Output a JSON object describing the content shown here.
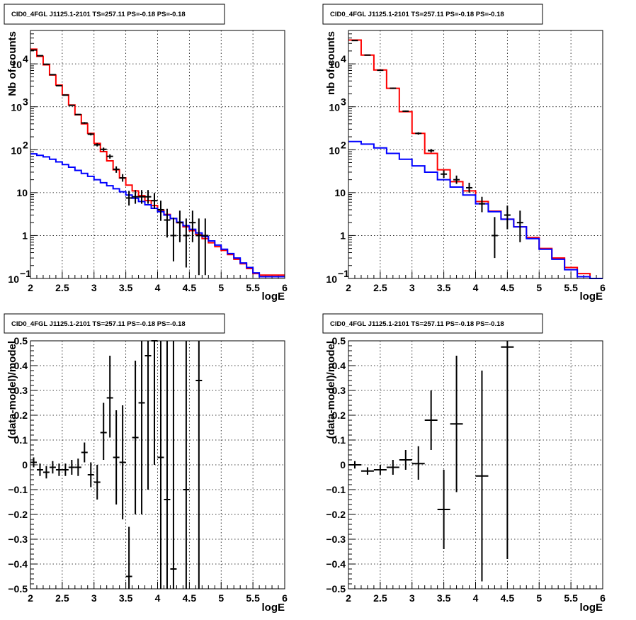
{
  "panels": [
    {
      "id": "top-left",
      "title": "CID0_4FGL J1125.1-2101 TS=257.11 PS=-0.18 PS=-0.18",
      "xlabel": "logE",
      "ylabel": "Nb of counts"
    },
    {
      "id": "top-right",
      "title": "CID0_4FGL J1125.1-2101 TS=257.11 PS=-0.18 PS=-0.18",
      "xlabel": "logE",
      "ylabel": "nb of counts"
    },
    {
      "id": "bottom-left",
      "title": "CID0_4FGL J1125.1-2101 TS=257.11 PS=-0.18 PS=-0.18",
      "xlabel": "logE",
      "ylabel": "(data-model)/model"
    },
    {
      "id": "bottom-right",
      "title": "CID0_4FGL J1125.1-2101 TS=257.11 PS=-0.18 PS=-0.18",
      "xlabel": "logE",
      "ylabel": "(data-model)/model"
    }
  ],
  "chart_data": [
    {
      "type": "line",
      "title": "CID0_4FGL J1125.1-2101 TS=257.11 PS=-0.18 PS=-0.18",
      "xlabel": "logE",
      "ylabel": "Nb of counts",
      "xlim": [
        2,
        6
      ],
      "ylim": [
        0.1,
        60000
      ],
      "yscale": "log",
      "grid": true,
      "xticks": [
        "2",
        "2.5",
        "3",
        "3.5",
        "4",
        "4.5",
        "5",
        "5.5",
        "6"
      ],
      "yticks": [
        {
          "v": 0.1,
          "t": "10"
        },
        {
          "v": 1,
          "t": "1"
        },
        {
          "v": 10,
          "t": "10"
        },
        {
          "v": 100,
          "t": "10"
        },
        {
          "v": 1000,
          "t": "10"
        },
        {
          "v": 10000,
          "t": "10"
        }
      ],
      "bin_edges": [
        2,
        2.1,
        2.2,
        2.3,
        2.4,
        2.5,
        2.6,
        2.7,
        2.8,
        2.9,
        3,
        3.1,
        3.2,
        3.3,
        3.4,
        3.5,
        3.6,
        3.7,
        3.8,
        3.9,
        4,
        4.1,
        4.2,
        4.3,
        4.4,
        4.5,
        4.6,
        4.7,
        4.8,
        4.9,
        5,
        5.1,
        5.2,
        5.3,
        5.4,
        5.5,
        5.6,
        5.7,
        5.8,
        5.9,
        6
      ],
      "series": [
        {
          "color": "#ff0000",
          "values": [
            22000,
            15000,
            9500,
            5500,
            3200,
            1900,
            1100,
            650,
            400,
            240,
            140,
            90,
            55,
            34,
            22,
            15,
            11,
            8.5,
            6.5,
            5,
            3.9,
            3.1,
            2.5,
            2.0,
            1.6,
            1.3,
            1.05,
            0.85,
            0.68,
            0.55,
            0.45,
            0.36,
            0.28,
            0.22,
            0.17,
            0.13,
            0.12,
            0.12,
            0.12,
            0.12
          ]
        },
        {
          "color": "#0000ff",
          "values": [
            80,
            74,
            68,
            60,
            52,
            45,
            39,
            33,
            28,
            24,
            20,
            17,
            14.5,
            12.3,
            10.5,
            8.8,
            7.4,
            6.2,
            5.2,
            4.3,
            3.6,
            3.0,
            2.5,
            2.05,
            1.7,
            1.4,
            1.15,
            0.95,
            0.75,
            0.6,
            0.48,
            0.38,
            0.3,
            0.23,
            0.18,
            0.135,
            0.11,
            0.11,
            0.11,
            0.11
          ]
        }
      ],
      "points": [
        {
          "x": 2.05,
          "y": 21000,
          "lo": 20500,
          "hi": 21500
        },
        {
          "x": 2.15,
          "y": 15500,
          "lo": 15200,
          "hi": 15800
        },
        {
          "x": 2.25,
          "y": 9800,
          "lo": 9600,
          "hi": 10000
        },
        {
          "x": 2.35,
          "y": 5600,
          "lo": 5450,
          "hi": 5750
        },
        {
          "x": 2.45,
          "y": 3100,
          "lo": 3000,
          "hi": 3200
        },
        {
          "x": 2.55,
          "y": 1870,
          "lo": 1830,
          "hi": 1910
        },
        {
          "x": 2.65,
          "y": 1080,
          "lo": 1050,
          "hi": 1110
        },
        {
          "x": 2.75,
          "y": 660,
          "lo": 640,
          "hi": 680
        },
        {
          "x": 2.85,
          "y": 420,
          "lo": 400,
          "hi": 440
        },
        {
          "x": 2.95,
          "y": 230,
          "lo": 215,
          "hi": 245
        },
        {
          "x": 3.05,
          "y": 130,
          "lo": 119,
          "hi": 141
        },
        {
          "x": 3.15,
          "y": 102,
          "lo": 92,
          "hi": 112
        },
        {
          "x": 3.25,
          "y": 70,
          "lo": 62,
          "hi": 78
        },
        {
          "x": 3.35,
          "y": 35,
          "lo": 29,
          "hi": 41
        },
        {
          "x": 3.45,
          "y": 22,
          "lo": 18,
          "hi": 27
        },
        {
          "x": 3.55,
          "y": 7.5,
          "lo": 5,
          "hi": 11
        },
        {
          "x": 3.65,
          "y": 8,
          "lo": 5.5,
          "hi": 11.5
        },
        {
          "x": 3.75,
          "y": 8,
          "lo": 5.5,
          "hi": 11.5
        },
        {
          "x": 3.85,
          "y": 8,
          "lo": 5.5,
          "hi": 11.5
        },
        {
          "x": 3.95,
          "y": 6.5,
          "lo": 4.2,
          "hi": 9.8
        },
        {
          "x": 4.05,
          "y": 4,
          "lo": 2.2,
          "hi": 6.5
        },
        {
          "x": 4.15,
          "y": 2.3,
          "lo": 0.9,
          "hi": 4.2
        },
        {
          "x": 4.25,
          "y": 1,
          "lo": 0.25,
          "hi": 2.6
        },
        {
          "x": 4.35,
          "y": 2,
          "lo": 0.7,
          "hi": 3.8
        },
        {
          "x": 4.45,
          "y": 1,
          "lo": 0.18,
          "hi": 2.5
        },
        {
          "x": 4.55,
          "y": 2,
          "lo": 0.7,
          "hi": 3.8
        },
        {
          "x": 4.65,
          "y": 1,
          "lo": 0.12,
          "hi": 2.5
        },
        {
          "x": 4.75,
          "y": 1,
          "lo": 0.12,
          "hi": 2.5
        }
      ]
    },
    {
      "type": "line",
      "title": "CID0_4FGL J1125.1-2101 TS=257.11 PS=-0.18 PS=-0.18",
      "xlabel": "logE",
      "ylabel": "nb of counts",
      "xlim": [
        2,
        6
      ],
      "ylim": [
        0.1,
        60000
      ],
      "yscale": "log",
      "grid": true,
      "xticks": [
        "2",
        "2.5",
        "3",
        "3.5",
        "4",
        "4.5",
        "5",
        "5.5",
        "6"
      ],
      "yticks": [
        {
          "v": 0.1,
          "t": "10"
        },
        {
          "v": 1,
          "t": "1"
        },
        {
          "v": 10,
          "t": "10"
        },
        {
          "v": 100,
          "t": "10"
        },
        {
          "v": 1000,
          "t": "10"
        },
        {
          "v": 10000,
          "t": "10"
        }
      ],
      "bin_edges": [
        2,
        2.2,
        2.4,
        2.6,
        2.8,
        3,
        3.2,
        3.4,
        3.6,
        3.8,
        4,
        4.2,
        4.4,
        4.6,
        4.8,
        5,
        5.2,
        5.4,
        5.6,
        5.8,
        6
      ],
      "series": [
        {
          "color": "#ff0000",
          "values": [
            36000,
            16000,
            7200,
            2700,
            770,
            240,
            82,
            34,
            18,
            11,
            6.2,
            3.7,
            2.4,
            1.6,
            0.9,
            0.5,
            0.3,
            0.18,
            0.13,
            0.1
          ]
        },
        {
          "color": "#0000ff",
          "values": [
            155,
            135,
            110,
            82,
            60,
            42,
            30,
            20,
            13.5,
            8.8,
            5.5,
            3.6,
            2.4,
            1.6,
            0.85,
            0.48,
            0.28,
            0.16,
            0.11,
            0.1
          ]
        }
      ],
      "points": [
        {
          "x": 2.1,
          "y": 35000,
          "lo": 34500,
          "hi": 35500
        },
        {
          "x": 2.3,
          "y": 16000,
          "lo": 15700,
          "hi": 16300
        },
        {
          "x": 2.5,
          "y": 7100,
          "lo": 6950,
          "hi": 7250
        },
        {
          "x": 2.7,
          "y": 2700,
          "lo": 2600,
          "hi": 2800
        },
        {
          "x": 2.9,
          "y": 790,
          "lo": 760,
          "hi": 820
        },
        {
          "x": 3.1,
          "y": 240,
          "lo": 225,
          "hi": 255
        },
        {
          "x": 3.3,
          "y": 95,
          "lo": 86,
          "hi": 104
        },
        {
          "x": 3.5,
          "y": 27,
          "lo": 22,
          "hi": 33
        },
        {
          "x": 3.7,
          "y": 20,
          "lo": 16,
          "hi": 25
        },
        {
          "x": 3.9,
          "y": 13,
          "lo": 10,
          "hi": 17
        },
        {
          "x": 4.1,
          "y": 5.5,
          "lo": 3.5,
          "hi": 8
        },
        {
          "x": 4.3,
          "y": 1,
          "lo": 0.3,
          "hi": 2.7
        },
        {
          "x": 4.5,
          "y": 3,
          "lo": 1.4,
          "hi": 5
        },
        {
          "x": 4.7,
          "y": 2,
          "lo": 0.7,
          "hi": 3.8
        }
      ]
    },
    {
      "type": "scatter",
      "title": "CID0_4FGL J1125.1-2101 TS=257.11 PS=-0.18 PS=-0.18",
      "xlabel": "logE",
      "ylabel": "(data-model)/model",
      "xlim": [
        2,
        6
      ],
      "ylim": [
        -0.5,
        0.5
      ],
      "grid": true,
      "xticks": [
        "2",
        "2.5",
        "3",
        "3.5",
        "4",
        "4.5",
        "5",
        "5.5",
        "6"
      ],
      "yticks": [
        {
          "v": -0.5,
          "t": "−0.5"
        },
        {
          "v": -0.4,
          "t": "−0.4"
        },
        {
          "v": -0.3,
          "t": "−0.3"
        },
        {
          "v": -0.2,
          "t": "−0.2"
        },
        {
          "v": -0.1,
          "t": "−0.1"
        },
        {
          "v": 0,
          "t": "0"
        },
        {
          "v": 0.1,
          "t": "0.1"
        },
        {
          "v": 0.2,
          "t": "0.2"
        },
        {
          "v": 0.3,
          "t": "0.3"
        },
        {
          "v": 0.4,
          "t": "0.4"
        },
        {
          "v": 0.5,
          "t": "0.5"
        }
      ],
      "xerr": 0.05,
      "points": [
        {
          "x": 2.05,
          "y": 0.01,
          "lo": -0.01,
          "hi": 0.03
        },
        {
          "x": 2.15,
          "y": -0.02,
          "lo": -0.045,
          "hi": 0.005
        },
        {
          "x": 2.25,
          "y": -0.03,
          "lo": -0.055,
          "hi": -0.005
        },
        {
          "x": 2.35,
          "y": -0.01,
          "lo": -0.035,
          "hi": 0.015
        },
        {
          "x": 2.45,
          "y": -0.02,
          "lo": -0.045,
          "hi": 0.005
        },
        {
          "x": 2.55,
          "y": -0.02,
          "lo": -0.045,
          "hi": 0.005
        },
        {
          "x": 2.65,
          "y": -0.01,
          "lo": -0.04,
          "hi": 0.02
        },
        {
          "x": 2.75,
          "y": -0.01,
          "lo": -0.045,
          "hi": 0.025
        },
        {
          "x": 2.85,
          "y": 0.05,
          "lo": 0.01,
          "hi": 0.09
        },
        {
          "x": 2.95,
          "y": -0.04,
          "lo": -0.09,
          "hi": 0.01
        },
        {
          "x": 3.05,
          "y": -0.07,
          "lo": -0.14,
          "hi": 0.0
        },
        {
          "x": 3.15,
          "y": 0.13,
          "lo": 0.02,
          "hi": 0.25
        },
        {
          "x": 3.25,
          "y": 0.27,
          "lo": 0.11,
          "hi": 0.44
        },
        {
          "x": 3.35,
          "y": 0.03,
          "lo": -0.16,
          "hi": 0.22
        },
        {
          "x": 3.45,
          "y": 0.01,
          "lo": -0.22,
          "hi": 0.24
        },
        {
          "x": 3.55,
          "y": -0.45,
          "lo": -0.5,
          "hi": -0.25
        },
        {
          "x": 3.65,
          "y": 0.11,
          "lo": -0.2,
          "hi": 0.42
        },
        {
          "x": 3.75,
          "y": 0.25,
          "lo": -0.2,
          "hi": 0.5
        },
        {
          "x": 3.85,
          "y": 0.44,
          "lo": -0.1,
          "hi": 0.5
        },
        {
          "x": 3.95,
          "y": 0.5,
          "lo": 0.0,
          "hi": 0.5
        },
        {
          "x": 4.05,
          "y": 0.03,
          "lo": -0.5,
          "hi": 0.5
        },
        {
          "x": 4.15,
          "y": -0.14,
          "lo": -0.5,
          "hi": 0.5
        },
        {
          "x": 4.25,
          "y": -0.42,
          "lo": -0.5,
          "hi": 0.5
        },
        {
          "x": 4.45,
          "y": -0.1,
          "lo": -0.5,
          "hi": 0.5
        },
        {
          "x": 4.65,
          "y": 0.34,
          "lo": -0.5,
          "hi": 0.5
        }
      ]
    },
    {
      "type": "scatter",
      "title": "CID0_4FGL J1125.1-2101 TS=257.11 PS=-0.18 PS=-0.18",
      "xlabel": "logE",
      "ylabel": "(data-model)/model",
      "xlim": [
        2,
        6
      ],
      "ylim": [
        -0.5,
        0.5
      ],
      "grid": true,
      "xticks": [
        "2",
        "2.5",
        "3",
        "3.5",
        "4",
        "4.5",
        "5",
        "5.5",
        "6"
      ],
      "yticks": [
        {
          "v": -0.5,
          "t": "−0.5"
        },
        {
          "v": -0.4,
          "t": "−0.4"
        },
        {
          "v": -0.3,
          "t": "−0.3"
        },
        {
          "v": -0.2,
          "t": "−0.2"
        },
        {
          "v": -0.1,
          "t": "−0.1"
        },
        {
          "v": 0,
          "t": "0"
        },
        {
          "v": 0.1,
          "t": "0.1"
        },
        {
          "v": 0.2,
          "t": "0.2"
        },
        {
          "v": 0.3,
          "t": "0.3"
        },
        {
          "v": 0.4,
          "t": "0.4"
        },
        {
          "v": 0.5,
          "t": "0.5"
        }
      ],
      "xerr": 0.1,
      "points": [
        {
          "x": 2.1,
          "y": 0.0,
          "lo": -0.015,
          "hi": 0.015
        },
        {
          "x": 2.3,
          "y": -0.025,
          "lo": -0.04,
          "hi": -0.01
        },
        {
          "x": 2.5,
          "y": -0.02,
          "lo": -0.04,
          "hi": 0.0
        },
        {
          "x": 2.7,
          "y": -0.01,
          "lo": -0.04,
          "hi": 0.02
        },
        {
          "x": 2.9,
          "y": 0.02,
          "lo": -0.02,
          "hi": 0.06
        },
        {
          "x": 3.1,
          "y": 0.005,
          "lo": -0.06,
          "hi": 0.075
        },
        {
          "x": 3.3,
          "y": 0.18,
          "lo": 0.06,
          "hi": 0.3
        },
        {
          "x": 3.5,
          "y": -0.18,
          "lo": -0.34,
          "hi": -0.02
        },
        {
          "x": 3.7,
          "y": 0.165,
          "lo": -0.11,
          "hi": 0.44
        },
        {
          "x": 4.1,
          "y": -0.045,
          "lo": -0.47,
          "hi": 0.38
        },
        {
          "x": 4.5,
          "y": 0.475,
          "lo": -0.38,
          "hi": 0.5
        }
      ]
    }
  ]
}
